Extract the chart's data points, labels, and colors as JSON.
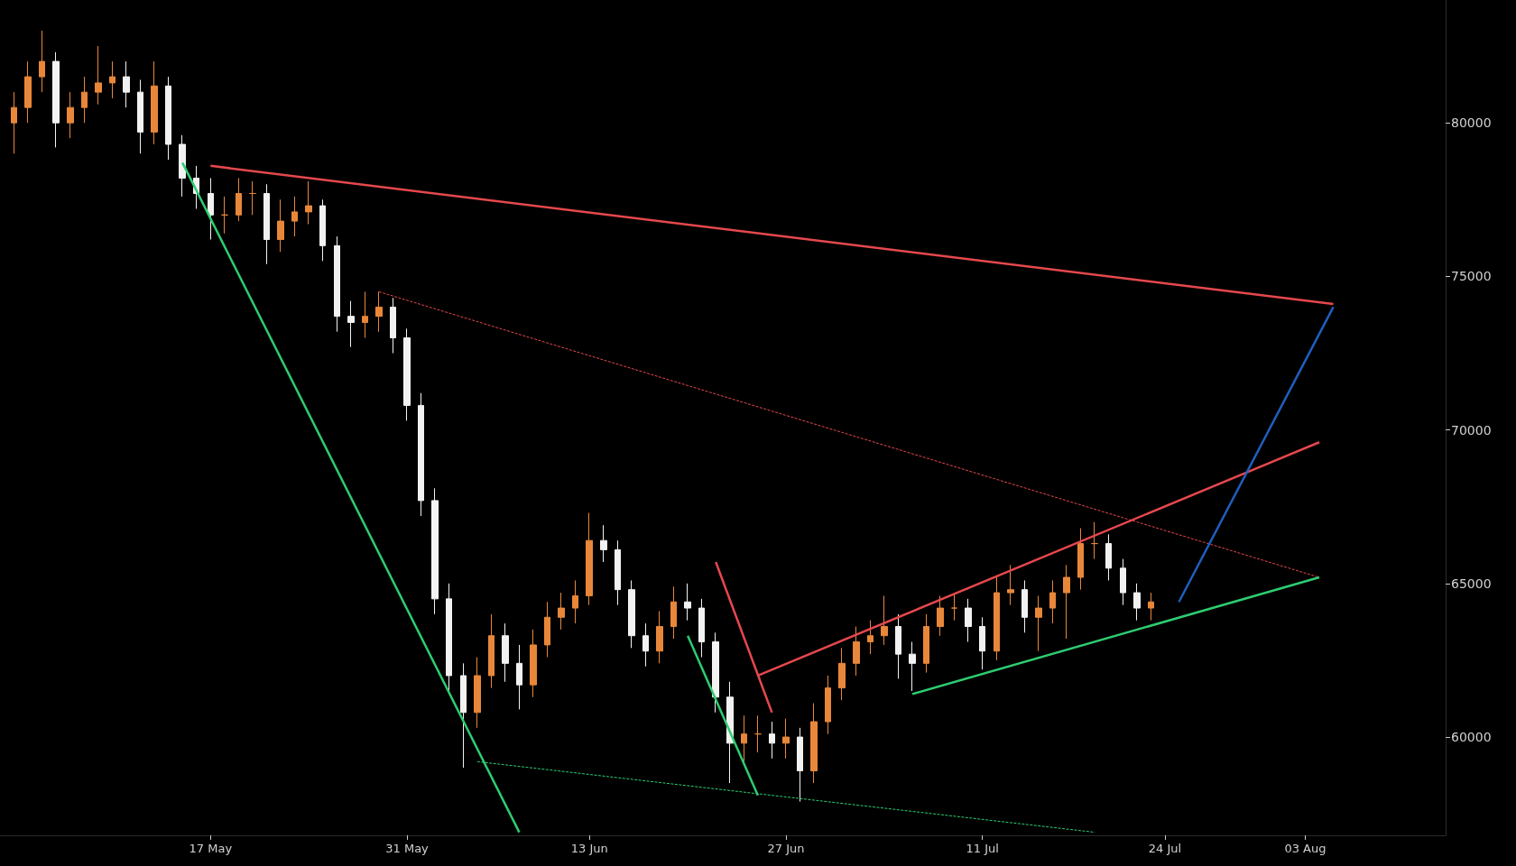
{
  "chart_data": {
    "type": "candlestick",
    "x": [
      "--05-03",
      "--05-04",
      "--05-05",
      "--05-06",
      "--05-07",
      "--05-08",
      "--05-09",
      "--05-10",
      "--05-11",
      "--05-12",
      "--05-13",
      "--05-14",
      "--05-15",
      "--05-16",
      "--05-17",
      "--05-18",
      "--05-19",
      "--05-20",
      "--05-21",
      "--05-22",
      "--05-23",
      "--05-24",
      "--05-25",
      "--05-26",
      "--05-27",
      "--05-28",
      "--05-29",
      "--05-30",
      "--05-31",
      "--06-01",
      "--06-02",
      "--06-03",
      "--06-04",
      "--06-05",
      "--06-06",
      "--06-07",
      "--06-08",
      "--06-09",
      "--06-10",
      "--06-11",
      "--06-12",
      "--06-13",
      "--06-14",
      "--06-15",
      "--06-16",
      "--06-17",
      "--06-18",
      "--06-19",
      "--06-20",
      "--06-21",
      "--06-22",
      "--06-23",
      "--06-24",
      "--06-25",
      "--06-26",
      "--06-27",
      "--06-28",
      "--06-29",
      "--06-30",
      "--07-01",
      "--07-02",
      "--07-03",
      "--07-04",
      "--07-05",
      "--07-06",
      "--07-07",
      "--07-08",
      "--07-09",
      "--07-10",
      "--07-11",
      "--07-12",
      "--07-13",
      "--07-14",
      "--07-15",
      "--07-16",
      "--07-17",
      "--07-18",
      "--07-19",
      "--07-20",
      "--07-21",
      "--07-22",
      "--07-23"
    ],
    "ohlc": [
      [
        80000,
        81000,
        79000,
        80500
      ],
      [
        80500,
        82000,
        80000,
        81500
      ],
      [
        81500,
        83000,
        81000,
        82000
      ],
      [
        82000,
        82300,
        79200,
        80000
      ],
      [
        80000,
        81000,
        79500,
        80500
      ],
      [
        80500,
        81500,
        80000,
        81000
      ],
      [
        81000,
        82500,
        80600,
        81300
      ],
      [
        81300,
        82000,
        80800,
        81500
      ],
      [
        81500,
        82000,
        80500,
        81000
      ],
      [
        81000,
        81400,
        79000,
        79700
      ],
      [
        79700,
        82000,
        79300,
        81200
      ],
      [
        81200,
        81500,
        78800,
        79300
      ],
      [
        79300,
        79600,
        77600,
        78200
      ],
      [
        78200,
        78600,
        77200,
        77700
      ],
      [
        77700,
        78200,
        76200,
        77000
      ],
      [
        77000,
        77600,
        76400,
        77000
      ],
      [
        77000,
        78200,
        76800,
        77700
      ],
      [
        77700,
        78100,
        77000,
        77700
      ],
      [
        77700,
        78000,
        75400,
        76200
      ],
      [
        76200,
        77500,
        75800,
        76800
      ],
      [
        76800,
        77600,
        76300,
        77100
      ],
      [
        77100,
        78100,
        76700,
        77300
      ],
      [
        77300,
        77500,
        75500,
        76000
      ],
      [
        76000,
        76300,
        73200,
        73700
      ],
      [
        73700,
        74200,
        72700,
        73500
      ],
      [
        73500,
        74500,
        73000,
        73700
      ],
      [
        73700,
        74500,
        73200,
        74000
      ],
      [
        74000,
        74300,
        72500,
        73000
      ],
      [
        73000,
        73300,
        70300,
        70800
      ],
      [
        70800,
        71200,
        67200,
        67700
      ],
      [
        67700,
        68100,
        64000,
        64500
      ],
      [
        64500,
        65000,
        61500,
        62000
      ],
      [
        62000,
        62400,
        59000,
        60800
      ],
      [
        60800,
        62600,
        60300,
        62000
      ],
      [
        62000,
        64000,
        61600,
        63300
      ],
      [
        63300,
        63700,
        61800,
        62400
      ],
      [
        62400,
        63000,
        60900,
        61700
      ],
      [
        61700,
        63500,
        61300,
        63000
      ],
      [
        63000,
        64400,
        62600,
        63900
      ],
      [
        63900,
        64700,
        63500,
        64200
      ],
      [
        64200,
        65100,
        63700,
        64600
      ],
      [
        64600,
        67300,
        64300,
        66400
      ],
      [
        66400,
        66900,
        65700,
        66100
      ],
      [
        66100,
        66400,
        64300,
        64800
      ],
      [
        64800,
        65100,
        62900,
        63300
      ],
      [
        63300,
        63700,
        62300,
        62800
      ],
      [
        62800,
        64100,
        62400,
        63600
      ],
      [
        63600,
        64900,
        63200,
        64400
      ],
      [
        64400,
        65000,
        63800,
        64200
      ],
      [
        64200,
        64500,
        62600,
        63100
      ],
      [
        63100,
        63400,
        60800,
        61300
      ],
      [
        61300,
        61800,
        58500,
        59800
      ],
      [
        59800,
        60700,
        59200,
        60100
      ],
      [
        60100,
        60700,
        59500,
        60100
      ],
      [
        60100,
        60500,
        59300,
        59800
      ],
      [
        59800,
        60600,
        59300,
        60000
      ],
      [
        60000,
        60300,
        57900,
        58900
      ],
      [
        58900,
        61100,
        58500,
        60500
      ],
      [
        60500,
        62000,
        60100,
        61600
      ],
      [
        61600,
        62900,
        61200,
        62400
      ],
      [
        62400,
        63600,
        62000,
        63100
      ],
      [
        63100,
        63800,
        62700,
        63300
      ],
      [
        63300,
        64600,
        63000,
        63600
      ],
      [
        63600,
        64000,
        61900,
        62700
      ],
      [
        62700,
        63100,
        61500,
        62400
      ],
      [
        62400,
        64000,
        62100,
        63600
      ],
      [
        63600,
        64600,
        63300,
        64200
      ],
      [
        64200,
        64700,
        63800,
        64200
      ],
      [
        64200,
        64500,
        63100,
        63600
      ],
      [
        63600,
        63900,
        62200,
        62800
      ],
      [
        62800,
        65200,
        62500,
        64700
      ],
      [
        64700,
        65600,
        64300,
        64800
      ],
      [
        64800,
        65100,
        63400,
        63900
      ],
      [
        63900,
        64600,
        62800,
        64200
      ],
      [
        64200,
        65100,
        63700,
        64700
      ],
      [
        64700,
        65600,
        63200,
        65200
      ],
      [
        65200,
        66800,
        64800,
        66300
      ],
      [
        66300,
        67000,
        65800,
        66300
      ],
      [
        66300,
        66600,
        65100,
        65500
      ],
      [
        65500,
        65800,
        64300,
        64700
      ],
      [
        64700,
        65000,
        63800,
        64200
      ],
      [
        64200,
        64700,
        63800,
        64400
      ]
    ],
    "series": [
      {
        "type": "line",
        "color": "#e5484d",
        "line_style": "solid",
        "x": [
          "--05-17",
          "--08-05"
        ],
        "values": [
          78600,
          74100
        ]
      },
      {
        "type": "line",
        "color": "#2ecc71",
        "line_style": "solid",
        "x": [
          "--05-15",
          "--06-08"
        ],
        "values": [
          78700,
          56900
        ]
      },
      {
        "type": "line",
        "color": "#e5484d",
        "line_style": "dashed",
        "x": [
          "--05-29",
          "--08-04"
        ],
        "values": [
          74500,
          65200
        ]
      },
      {
        "type": "line",
        "color": "#2ecc71",
        "line_style": "dashed",
        "x": [
          "--06-05",
          "--07-19"
        ],
        "values": [
          59200,
          56900
        ]
      },
      {
        "type": "line",
        "color": "#e5484d",
        "line_style": "solid",
        "x": [
          "--06-22",
          "--06-26"
        ],
        "values": [
          65700,
          60800
        ]
      },
      {
        "type": "line",
        "color": "#2ecc71",
        "line_style": "solid",
        "x": [
          "--06-20",
          "--06-25"
        ],
        "values": [
          63300,
          58100
        ]
      },
      {
        "type": "line",
        "color": "#e5484d",
        "line_style": "solid",
        "x": [
          "--06-25",
          "--08-04"
        ],
        "values": [
          62000,
          69600
        ]
      },
      {
        "type": "line",
        "color": "#2ecc71",
        "line_style": "solid",
        "x": [
          "--07-06",
          "--08-04"
        ],
        "values": [
          61400,
          65200
        ]
      },
      {
        "type": "line",
        "color": "#1f5fbf",
        "line_style": "solid",
        "x": [
          "--07-25",
          "--08-05"
        ],
        "values": [
          64400,
          74000
        ]
      }
    ],
    "xlim": [
      "--05-02",
      "--08-13"
    ],
    "xticks": [
      {
        "value": "--05-17",
        "label": "17 May"
      },
      {
        "value": "--05-31",
        "label": "31 May"
      },
      {
        "value": "--06-13",
        "label": "13 Jun"
      },
      {
        "value": "--06-27",
        "label": "27 Jun"
      },
      {
        "value": "--07-11",
        "label": "11 Jul"
      },
      {
        "value": "--07-24",
        "label": "24 Jul"
      },
      {
        "value": "--08-03",
        "label": "03 Aug"
      }
    ],
    "ylim": [
      56800,
      84000
    ],
    "yticks": [
      60000,
      65000,
      70000,
      75000,
      80000
    ],
    "grid": false
  }
}
